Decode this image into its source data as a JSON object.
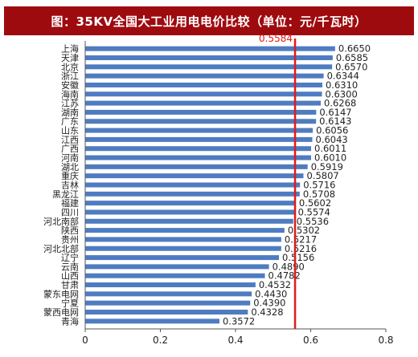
{
  "chart_data": {
    "type": "bar",
    "orientation": "horizontal",
    "title": "图：35KV全国大工业用电电价比较（单位：元/千瓦时）",
    "categories": [
      "上海",
      "天津",
      "北京",
      "浙江",
      "安徽",
      "海南",
      "江苏",
      "湖南",
      "广东",
      "山东",
      "江西",
      "广西",
      "河南",
      "湖北",
      "重庆",
      "吉林",
      "黑龙江",
      "福建",
      "四川",
      "河北南部",
      "陕西",
      "贵州",
      "河北北部",
      "辽宁",
      "云南",
      "山西",
      "甘肃",
      "蒙东电网",
      "宁夏",
      "蒙西电网",
      "青海"
    ],
    "values": [
      0.665,
      0.6585,
      0.657,
      0.6344,
      0.631,
      0.63,
      0.6268,
      0.6147,
      0.6143,
      0.6056,
      0.6043,
      0.6011,
      0.601,
      0.5919,
      0.5807,
      0.5716,
      0.5708,
      0.5602,
      0.5574,
      0.5536,
      0.5302,
      0.5217,
      0.5216,
      0.5156,
      0.489,
      0.4782,
      0.4532,
      0.443,
      0.439,
      0.4328,
      0.3572
    ],
    "value_labels": [
      "0.6650",
      "0.6585",
      "0.6570",
      "0.6344",
      "0.6310",
      "0.6300",
      "0.6268",
      "0.6147",
      "0.6143",
      "0.6056",
      "0.6043",
      "0.6011",
      "0.6010",
      "0.5919",
      "0.5807",
      "0.5716",
      "0.5708",
      "0.5602",
      "0.5574",
      "0.5536",
      "0.5302",
      "0.5217",
      "0.5216",
      "0.5156",
      "0.4890",
      "0.4782",
      "0.4532",
      "0.4430",
      "0.4390",
      "0.4328",
      "0.3572"
    ],
    "reference_line": {
      "value": 0.5584,
      "label": "0.5584"
    },
    "xlim": [
      0,
      0.8
    ],
    "x_ticks": [
      0,
      0.2,
      0.4,
      0.6,
      0.8
    ],
    "x_tick_labels": [
      "0",
      "0.2",
      "0.4",
      "0.6",
      "0.8"
    ],
    "grid": false,
    "bar_color": "#4f7cc1",
    "reference_color": "#e01b1b"
  }
}
